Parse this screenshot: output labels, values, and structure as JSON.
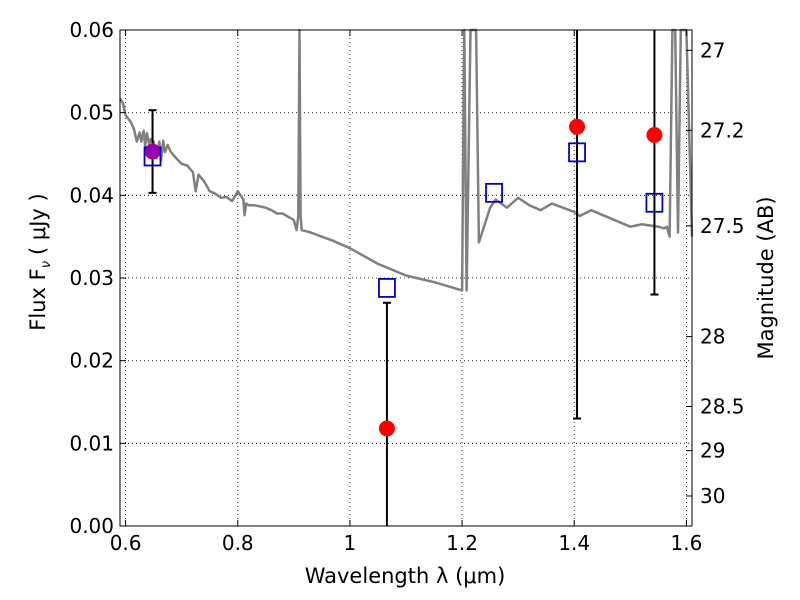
{
  "chart_data": {
    "type": "scatter",
    "xlabel": "Wavelength  λ (μm)",
    "ylabel": "Flux  F",
    "ylabel_sub": "ν",
    "ylabel_unit": "( μJy )",
    "y2label": "Magnitude (AB)",
    "xlim": [
      0.59,
      1.61
    ],
    "ylim": [
      0.0,
      0.06
    ],
    "x_ticks": [
      0.6,
      0.8,
      1.0,
      1.2,
      1.4,
      1.6
    ],
    "x_tick_labels": [
      "0.6",
      "0.8",
      "1",
      "1.2",
      "1.4",
      "1.6"
    ],
    "y_ticks": [
      0.0,
      0.01,
      0.02,
      0.03,
      0.04,
      0.05,
      0.06
    ],
    "y_tick_labels": [
      "0.00",
      "0.01",
      "0.02",
      "0.03",
      "0.04",
      "0.05",
      "0.06"
    ],
    "y2_ticks": [
      "27",
      "27.2",
      "27.5",
      "28",
      "28.5",
      "29",
      "30"
    ],
    "grid": true,
    "series": [
      {
        "marker": "filled-circle",
        "color": "#ff0000",
        "points": [
          {
            "x": 0.648,
            "y": 0.0453,
            "err": 0.005
          },
          {
            "x": 1.066,
            "y": 0.0118,
            "err": 0.0152
          },
          {
            "x": 1.405,
            "y": 0.0483,
            "err": 0.0353
          },
          {
            "x": 1.543,
            "y": 0.0473,
            "err": 0.0193
          }
        ]
      },
      {
        "marker": "open-square",
        "color": "#0000cc",
        "points": [
          {
            "x": 0.648,
            "y": 0.0447
          },
          {
            "x": 1.066,
            "y": 0.0288
          },
          {
            "x": 1.257,
            "y": 0.0403
          },
          {
            "x": 1.405,
            "y": 0.0452
          },
          {
            "x": 1.543,
            "y": 0.0391
          }
        ]
      },
      {
        "type": "line",
        "color": "#808080",
        "x": [
          0.59,
          0.595,
          0.6,
          0.61,
          0.615,
          0.62,
          0.625,
          0.628,
          0.632,
          0.635,
          0.638,
          0.642,
          0.645,
          0.65,
          0.655,
          0.66,
          0.663,
          0.667,
          0.67,
          0.675,
          0.68,
          0.69,
          0.7,
          0.71,
          0.72,
          0.725,
          0.73,
          0.74,
          0.75,
          0.76,
          0.77,
          0.78,
          0.79,
          0.8,
          0.81,
          0.812,
          0.815,
          0.82,
          0.83,
          0.85,
          0.86,
          0.87,
          0.88,
          0.9,
          0.905,
          0.908,
          0.91,
          0.912,
          0.914,
          0.92,
          0.93,
          0.95,
          0.97,
          1.0,
          1.05,
          1.1,
          1.15,
          1.2,
          1.202,
          1.204,
          1.206,
          1.208,
          1.215,
          1.225,
          1.23,
          1.25,
          1.26,
          1.28,
          1.3,
          1.32,
          1.34,
          1.36,
          1.38,
          1.4,
          1.41,
          1.43,
          1.5,
          1.52,
          1.55,
          1.56,
          1.565,
          1.57,
          1.575,
          1.58,
          1.585,
          1.59,
          1.6,
          1.61
        ],
        "y": [
          0.0517,
          0.0512,
          0.0497,
          0.0488,
          0.048,
          0.0465,
          0.0476,
          0.0465,
          0.0478,
          0.046,
          0.0475,
          0.0462,
          0.0468,
          0.0465,
          0.0445,
          0.0465,
          0.0442,
          0.0466,
          0.0452,
          0.0461,
          0.0453,
          0.0445,
          0.0438,
          0.0436,
          0.0428,
          0.0405,
          0.0425,
          0.0417,
          0.0405,
          0.0402,
          0.0397,
          0.0398,
          0.0393,
          0.0405,
          0.0395,
          0.0376,
          0.039,
          0.0388,
          0.0388,
          0.0385,
          0.0382,
          0.0378,
          0.0378,
          0.037,
          0.0358,
          0.0375,
          0.06,
          0.0375,
          0.0358,
          0.0357,
          0.0355,
          0.035,
          0.0345,
          0.0336,
          0.0317,
          0.0303,
          0.0295,
          0.0285,
          0.045,
          0.06,
          0.045,
          0.0285,
          0.06,
          0.06,
          0.0343,
          0.0385,
          0.0395,
          0.0385,
          0.0397,
          0.0388,
          0.0382,
          0.039,
          0.0385,
          0.038,
          0.0375,
          0.0382,
          0.0362,
          0.0365,
          0.0362,
          0.036,
          0.0362,
          0.035,
          0.06,
          0.06,
          0.0355,
          0.06,
          0.06,
          0.035
        ]
      }
    ]
  }
}
